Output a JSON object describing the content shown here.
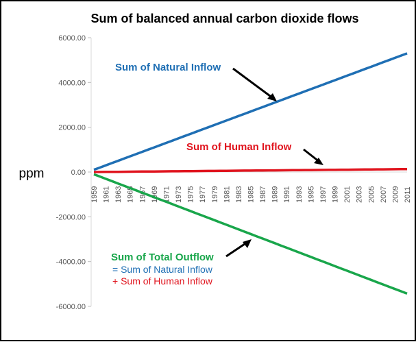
{
  "chart_data": {
    "type": "line",
    "title": "Sum of balanced annual carbon dioxide flows",
    "ylabel": "ppm",
    "xlabel": "",
    "ylim": [
      -6000,
      6000
    ],
    "yticks": [
      "6000.00",
      "4000.00",
      "2000.00",
      "0.00",
      "-2000.00",
      "-4000.00",
      "-6000.00"
    ],
    "ytick_values": [
      6000,
      4000,
      2000,
      0,
      -2000,
      -4000,
      -6000
    ],
    "x_start": 1959,
    "x_end": 2011,
    "xtick_labels": [
      "1959",
      "1961",
      "1963",
      "1965",
      "1967",
      "1969",
      "1971",
      "1973",
      "1975",
      "1977",
      "1979",
      "1981",
      "1983",
      "1985",
      "1987",
      "1989",
      "1991",
      "1993",
      "1995",
      "1997",
      "1999",
      "2001",
      "2003",
      "2005",
      "2007",
      "2009",
      "2011"
    ],
    "grid": false,
    "series": [
      {
        "name": "Sum of Natural Inflow",
        "color": "#1f6fb4",
        "values": [
          100,
          200,
          300,
          400,
          500,
          600,
          700,
          800,
          900,
          1000,
          1100,
          1200,
          1300,
          1400,
          1500,
          1600,
          1700,
          1800,
          1900,
          2000,
          2100,
          2200,
          2300,
          2400,
          2500,
          2600,
          2700,
          2800,
          2900,
          3000,
          3100,
          3200,
          3300,
          3400,
          3500,
          3600,
          3700,
          3800,
          3900,
          4000,
          4100,
          4200,
          4300,
          4400,
          4500,
          4600,
          4700,
          4800,
          4900,
          5000,
          5100,
          5200,
          5300
        ]
      },
      {
        "name": "Sum of Human Inflow",
        "color": "#e0141e",
        "values": [
          0,
          3,
          5,
          8,
          10,
          13,
          15,
          18,
          20,
          23,
          25,
          28,
          30,
          33,
          35,
          38,
          40,
          43,
          45,
          48,
          50,
          53,
          55,
          58,
          60,
          63,
          65,
          68,
          70,
          73,
          75,
          78,
          80,
          83,
          85,
          88,
          90,
          93,
          95,
          98,
          100,
          103,
          105,
          108,
          110,
          113,
          115,
          118,
          120,
          123,
          125,
          128,
          130
        ]
      },
      {
        "name": "Sum of Total Outflow",
        "color": "#19a64b",
        "values": [
          -100,
          -203,
          -305,
          -408,
          -510,
          -613,
          -715,
          -818,
          -920,
          -1023,
          -1125,
          -1228,
          -1330,
          -1433,
          -1535,
          -1638,
          -1740,
          -1843,
          -1945,
          -2048,
          -2150,
          -2253,
          -2355,
          -2458,
          -2560,
          -2663,
          -2765,
          -2868,
          -2970,
          -3073,
          -3175,
          -3278,
          -3380,
          -3483,
          -3585,
          -3688,
          -3790,
          -3893,
          -3995,
          -4098,
          -4200,
          -4303,
          -4405,
          -4508,
          -4610,
          -4713,
          -4815,
          -4918,
          -5020,
          -5123,
          -5225,
          -5328,
          -5430
        ]
      }
    ],
    "annotations": {
      "natural": "Sum of Natural Inflow",
      "human": "Sum of Human Inflow",
      "outflow": "Sum of Total Outflow",
      "outflow_line2": "= Sum of Natural Inflow",
      "outflow_line3": "+ Sum of Human Inflow"
    }
  }
}
